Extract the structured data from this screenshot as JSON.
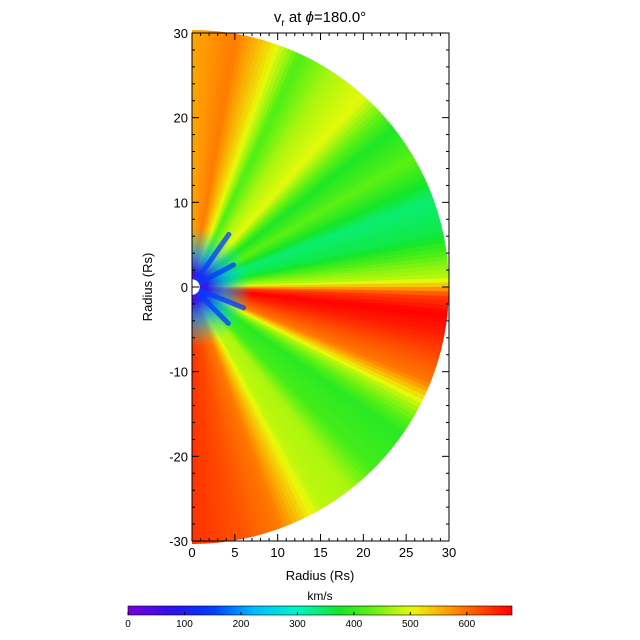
{
  "chart_data": {
    "type": "heatmap",
    "title_prefix": "v",
    "title_subscript": "r",
    "title_mid": " at ",
    "title_phi": "ϕ",
    "title_suffix": "=180.0°",
    "xlabel": "Radius (Rs)",
    "ylabel": "Radius (Rs)",
    "xlim": [
      0,
      30
    ],
    "ylim": [
      -30,
      30
    ],
    "xticks": [
      0,
      5,
      10,
      15,
      20,
      25,
      30
    ],
    "yticks": [
      -30,
      -20,
      -10,
      0,
      10,
      20,
      30
    ],
    "domain": "half-disk, r from 1 to 30 Rs",
    "colorbar": {
      "label": "km/s",
      "range": [
        0,
        680
      ],
      "ticks": [
        0,
        100,
        200,
        300,
        400,
        500,
        600
      ],
      "colormap": "rainbow (purple-blue-cyan-green-yellow-red)"
    },
    "angular_profile": {
      "description": "radial velocity versus polar angle from +y axis (degrees)",
      "theta_deg": [
        0,
        10,
        18,
        25,
        33,
        42,
        52,
        60,
        70,
        78,
        84,
        88,
        92,
        96,
        100,
        106,
        112,
        118,
        125,
        135,
        142,
        150,
        160,
        170,
        180
      ],
      "v_kms": [
        560,
        590,
        520,
        420,
        470,
        500,
        380,
        430,
        340,
        360,
        440,
        480,
        630,
        680,
        660,
        620,
        590,
        470,
        390,
        410,
        470,
        480,
        590,
        620,
        640
      ]
    },
    "inner_region": {
      "description": "slow wind near the origin",
      "radius_rs": 7,
      "v_kms": [
        0,
        300
      ]
    }
  }
}
